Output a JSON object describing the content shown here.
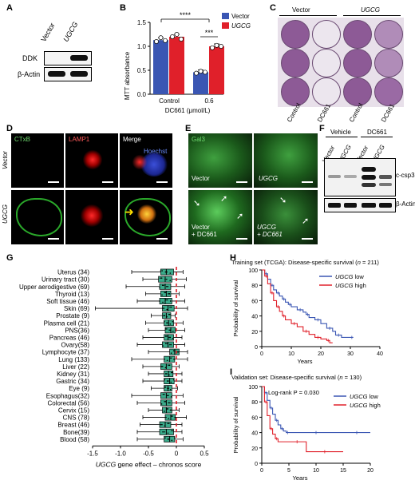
{
  "panel_letters": [
    "A",
    "B",
    "C",
    "D",
    "E",
    "F",
    "G",
    "H",
    "I"
  ],
  "panel_a": {
    "lanes": [
      "Vector",
      "UGCG"
    ],
    "rows": [
      "DDK",
      "β-Actin"
    ]
  },
  "panel_b": {
    "ylabel": "MTT absorbance",
    "xlabel": "DC661 (μmol/L)",
    "categories": [
      "Control",
      "0.6"
    ],
    "legend": [
      "Vector",
      "UGCG"
    ],
    "sig_top": "****",
    "sig_inner": "***",
    "yticks": [
      "0.0",
      "0.5",
      "1.0",
      "1.5"
    ]
  },
  "panel_c": {
    "groups": [
      "Vector",
      "UGCG"
    ],
    "cols": [
      "Control",
      "DC661",
      "Control",
      "DC661"
    ]
  },
  "panel_d": {
    "cols": [
      "CTxB",
      "LAMP1",
      "Merge"
    ],
    "hoechst": "Hoechst",
    "rows": [
      "Vector",
      "UGCG"
    ]
  },
  "panel_e": {
    "marker": "Gal3",
    "labels": [
      "Vector",
      "UGCG",
      "Vector\n+ DC661",
      "UGCG\n+ DC661"
    ]
  },
  "panel_f": {
    "groups": [
      "Vehicle",
      "DC661"
    ],
    "lanes": [
      "Vector",
      "UGCG",
      "Vector",
      "UGCG"
    ],
    "rows": [
      "c-csp3",
      "β-Actin"
    ]
  },
  "chart_data": [
    {
      "type": "bar",
      "categories": [
        "Control",
        "0.6"
      ],
      "series": [
        {
          "name": "Vector",
          "values": [
            1.13,
            0.46
          ],
          "points": [
            [
              1.1,
              1.18,
              1.12
            ],
            [
              0.44,
              0.48,
              0.46
            ]
          ]
        },
        {
          "name": "UGCG",
          "values": [
            1.2,
            1.0
          ],
          "points": [
            [
              1.2,
              1.25,
              1.15
            ],
            [
              0.97,
              1.02,
              1.0
            ]
          ]
        }
      ],
      "xlabel": "DC661 (μmol/L)",
      "ylabel": "MTT absorbance",
      "ylim": [
        0,
        1.5
      ],
      "colors": {
        "Vector": "#3a56b3",
        "UGCG": "#e0202a"
      }
    },
    {
      "type": "box",
      "categories": [
        "Uterus (34)",
        "Urinary tract (30)",
        "Upper aerodigestive (69)",
        "Thyroid (13)",
        "Soft tissue (46)",
        "Skin (69)",
        "Prostate (9)",
        "Plasma cell (21)",
        "PNS(36)",
        "Pancreas (46)",
        "Ovary(58)",
        "Lymphocyte (37)",
        "Lung (133)",
        "Liver (22)",
        "Kidney (31)",
        "Gastric (34)",
        "Eye (9)",
        "Esophagus(32)",
        "Colorectal (56)",
        "Cervix (15)",
        "CNS (78)",
        "Breast (46)",
        "Bone(39)",
        "Blood (58)"
      ],
      "boxes": [
        [
          -0.8,
          -0.28,
          -0.18,
          -0.05,
          0.12
        ],
        [
          -0.6,
          -0.32,
          -0.2,
          -0.08,
          0.18
        ],
        [
          -0.9,
          -0.3,
          -0.2,
          -0.1,
          0.15
        ],
        [
          -0.55,
          -0.28,
          -0.18,
          -0.1,
          0.05
        ],
        [
          -0.7,
          -0.3,
          -0.2,
          -0.08,
          0.15
        ],
        [
          -1.45,
          -0.25,
          -0.15,
          -0.04,
          0.2
        ],
        [
          -0.45,
          -0.25,
          -0.18,
          -0.1,
          -0.02
        ],
        [
          -0.55,
          -0.22,
          -0.14,
          -0.05,
          0.12
        ],
        [
          -0.5,
          -0.2,
          -0.1,
          -0.02,
          0.15
        ],
        [
          -0.6,
          -0.22,
          -0.15,
          -0.05,
          0.1
        ],
        [
          -0.7,
          -0.25,
          -0.15,
          -0.05,
          0.15
        ],
        [
          -0.5,
          -0.12,
          -0.03,
          0.05,
          0.2
        ],
        [
          -0.8,
          -0.22,
          -0.12,
          -0.03,
          0.2
        ],
        [
          -0.6,
          -0.28,
          -0.18,
          -0.08,
          0.05
        ],
        [
          -0.5,
          -0.22,
          -0.14,
          -0.06,
          0.1
        ],
        [
          -0.6,
          -0.22,
          -0.12,
          -0.04,
          0.1
        ],
        [
          -0.45,
          -0.22,
          -0.15,
          -0.08,
          0.02
        ],
        [
          -0.8,
          -0.28,
          -0.18,
          -0.08,
          0.12
        ],
        [
          -0.7,
          -0.28,
          -0.18,
          -0.08,
          0.15
        ],
        [
          -0.5,
          -0.25,
          -0.18,
          -0.08,
          0.05
        ],
        [
          -0.6,
          -0.2,
          -0.1,
          -0.02,
          0.18
        ],
        [
          -0.65,
          -0.3,
          -0.2,
          -0.1,
          0.1
        ],
        [
          -0.7,
          -0.3,
          -0.18,
          -0.05,
          0.1
        ],
        [
          -0.7,
          -0.22,
          -0.12,
          -0.03,
          0.12
        ]
      ],
      "xlabel": "UGCG gene effect – chronos score",
      "xlim": [
        -1.5,
        0.5
      ],
      "xticks": [
        "-1.5",
        "-1.0",
        "-0.5",
        "0",
        "0.5"
      ],
      "reference_line": 0,
      "colors": {
        "box": "#3aaa8a",
        "ref": "#e0202a"
      }
    },
    {
      "type": "line",
      "title_pre": "Training set (TCGA): Disease-specific survival (",
      "title_n": "n",
      "title_post": " = 211)",
      "xlabel": "Years",
      "ylabel": "Probability of survival",
      "xlim": [
        0,
        40
      ],
      "ylim": [
        0,
        100
      ],
      "xticks": [
        "0",
        "10",
        "20",
        "30",
        "40"
      ],
      "yticks": [
        "0",
        "20",
        "40",
        "60",
        "80",
        "100"
      ],
      "series": [
        {
          "name": "UGCG low",
          "color": "#3a56b3",
          "x": [
            0,
            1,
            2,
            3,
            4,
            5,
            6,
            7,
            8,
            9,
            10,
            12,
            14,
            15,
            16,
            18,
            20,
            22,
            24,
            25,
            27,
            30,
            31
          ],
          "y": [
            100,
            95,
            88,
            80,
            74,
            70,
            66,
            62,
            58,
            55,
            52,
            48,
            45,
            42,
            38,
            35,
            30,
            24,
            20,
            15,
            12,
            12,
            12
          ]
        },
        {
          "name": "UGCG high",
          "color": "#e0202a",
          "x": [
            0,
            1,
            2,
            3,
            4,
            5,
            6,
            7,
            8,
            10,
            12,
            14,
            16,
            18,
            20,
            22,
            23,
            24
          ],
          "y": [
            100,
            92,
            82,
            70,
            60,
            52,
            46,
            40,
            35,
            30,
            26,
            20,
            16,
            12,
            10,
            8,
            5,
            5
          ]
        }
      ]
    },
    {
      "type": "line",
      "title_pre": "Validation set: Disease-specific survival (",
      "title_n": "n",
      "title_post": " = 130)",
      "annotation": "Log-rank P = 0.030",
      "xlabel": "Years",
      "ylabel": "Probability of survival",
      "xlim": [
        0,
        20
      ],
      "ylim": [
        0,
        100
      ],
      "xticks": [
        "0",
        "5",
        "10",
        "15",
        "20"
      ],
      "yticks": [
        "0",
        "20",
        "40",
        "60",
        "80",
        "100"
      ],
      "series": [
        {
          "name": "UGCG low",
          "color": "#3a56b3",
          "x": [
            0,
            0.5,
            1,
            1.5,
            2,
            2.5,
            3,
            3.5,
            4,
            4.5,
            5,
            8,
            12,
            15,
            20
          ],
          "y": [
            100,
            92,
            82,
            72,
            64,
            56,
            50,
            45,
            42,
            40,
            40,
            40,
            40,
            40,
            40
          ]
        },
        {
          "name": "UGCG high",
          "color": "#e0202a",
          "x": [
            0,
            0.5,
            1,
            1.5,
            2,
            2.5,
            3,
            5,
            8,
            8.2,
            15
          ],
          "y": [
            100,
            80,
            62,
            45,
            38,
            32,
            28,
            28,
            28,
            15,
            15
          ]
        }
      ]
    }
  ]
}
